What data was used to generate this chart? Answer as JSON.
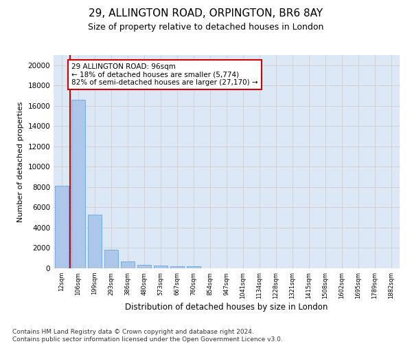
{
  "title_line1": "29, ALLINGTON ROAD, ORPINGTON, BR6 8AY",
  "title_line2": "Size of property relative to detached houses in London",
  "xlabel": "Distribution of detached houses by size in London",
  "ylabel": "Number of detached properties",
  "categories": [
    "12sqm",
    "106sqm",
    "199sqm",
    "293sqm",
    "386sqm",
    "480sqm",
    "573sqm",
    "667sqm",
    "760sqm",
    "854sqm",
    "947sqm",
    "1041sqm",
    "1134sqm",
    "1228sqm",
    "1321sqm",
    "1415sqm",
    "1508sqm",
    "1602sqm",
    "1695sqm",
    "1789sqm",
    "1882sqm"
  ],
  "values": [
    8100,
    16600,
    5300,
    1800,
    700,
    350,
    250,
    200,
    175,
    0,
    0,
    0,
    0,
    0,
    0,
    0,
    0,
    0,
    0,
    0,
    0
  ],
  "bar_color": "#aec6e8",
  "bar_edge_color": "#5b9bd5",
  "highlight_line_color": "#cc0000",
  "annotation_text": "29 ALLINGTON ROAD: 96sqm\n← 18% of detached houses are smaller (5,774)\n82% of semi-detached houses are larger (27,170) →",
  "annotation_box_color": "#ffffff",
  "annotation_box_edge_color": "#cc0000",
  "ylim": [
    0,
    21000
  ],
  "yticks": [
    0,
    2000,
    4000,
    6000,
    8000,
    10000,
    12000,
    14000,
    16000,
    18000,
    20000
  ],
  "grid_color": "#cccccc",
  "bg_color": "#dce8f5",
  "footer_text": "Contains HM Land Registry data © Crown copyright and database right 2024.\nContains public sector information licensed under the Open Government Licence v3.0.",
  "title_fontsize": 11,
  "subtitle_fontsize": 9,
  "annotation_fontsize": 7.5,
  "footer_fontsize": 6.5
}
